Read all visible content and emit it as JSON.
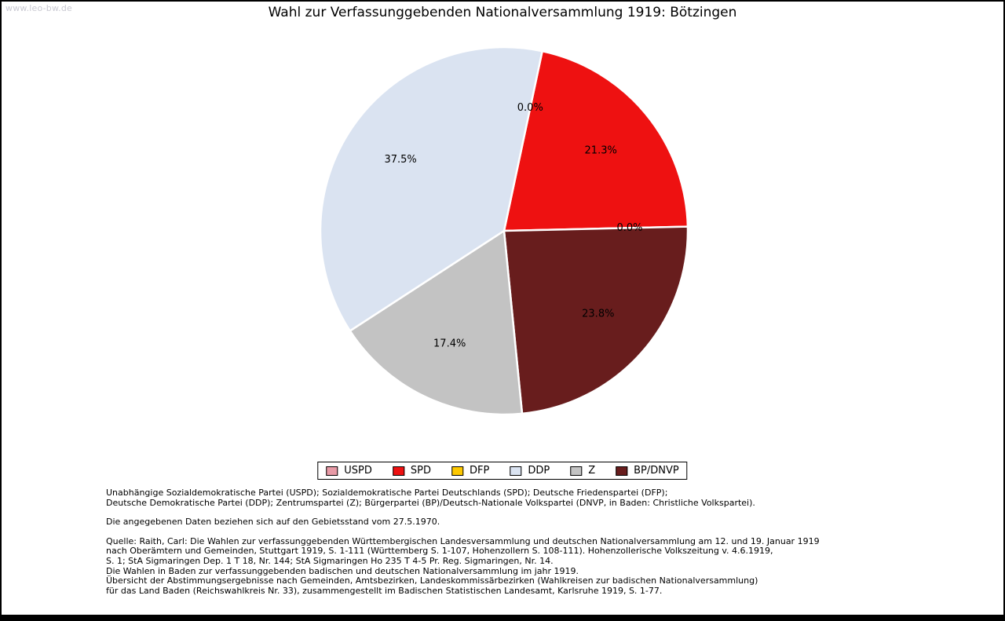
{
  "watermark": "www.leo-bw.de",
  "title": "Wahl zur Verfassunggebenden Nationalversammlung 1919: Bötzingen",
  "chart_data": {
    "type": "pie",
    "title": "Wahl zur Verfassunggebenden Nationalversammlung 1919: Bötzingen",
    "legend_position": "bottom",
    "start_angle_deg": 78,
    "direction": "clockwise",
    "center": [
      640,
      292
    ],
    "radius": 234,
    "label_radius": 160,
    "slice_edge_color": "#ffffff",
    "segments": [
      {
        "party": "USPD",
        "value": 0.0,
        "label": "0.0%",
        "color": "#e89aa6"
      },
      {
        "party": "SPD",
        "value": 21.3,
        "label": "21.3%",
        "color": "#ee1111"
      },
      {
        "party": "DFP",
        "value": 0.0,
        "label": "0.0%",
        "color": "#fdc800"
      },
      {
        "party": "DDP",
        "value": 37.5,
        "label": "37.5%",
        "color": "#dae3f1"
      },
      {
        "party": "Z",
        "value": 17.4,
        "label": "17.4%",
        "color": "#c3c3c3"
      },
      {
        "party": "BP/DNVP",
        "value": 23.8,
        "label": "23.8%",
        "color": "#681d1d"
      }
    ],
    "draw_order": [
      "USPD",
      "SPD",
      "DFP",
      "BP/DNVP",
      "Z",
      "DDP"
    ]
  },
  "notes": {
    "paragraphs": [
      [
        "Unabhängige Sozialdemokratische Partei (USPD); Sozialdemokratische Partei Deutschlands (SPD); Deutsche Friedenspartei (DFP);",
        "Deutsche Demokratische Partei (DDP); Zentrumspartei (Z); Bürgerpartei (BP)/Deutsch-Nationale Volkspartei (DNVP, in Baden: Christliche Volkspartei)."
      ],
      [
        "Die angegebenen Daten beziehen sich auf den Gebietsstand vom 27.5.1970."
      ],
      [
        "Quelle: Raith, Carl: Die Wahlen zur verfassunggebenden Württembergischen Landesversammlung und deutschen Nationalversammlung am 12. und 19. Januar 1919",
        "nach Oberämtern und Gemeinden, Stuttgart 1919, S. 1-111 (Württemberg S. 1-107, Hohenzollern S. 108-111). Hohenzollerische Volkszeitung v. 4.6.1919,",
        "S. 1; StA Sigmaringen Dep. 1 T 18, Nr. 144; StA Sigmaringen Ho 235 T 4-5 Pr. Reg. Sigmaringen, Nr. 14.",
        "Die Wahlen in Baden zur verfassunggebenden badischen und deutschen Nationalversammlung im jahr 1919.",
        "Übersicht der Abstimmungsergebnisse nach Gemeinden, Amtsbezirken, Landeskommissärbezirken (Wahlkreisen zur badischen Nationalversammlung)",
        "für das Land Baden (Reichswahlkreis Nr. 33), zusammengestellt im Badischen Statistischen Landesamt, Karlsruhe 1919, S. 1-77."
      ]
    ]
  }
}
